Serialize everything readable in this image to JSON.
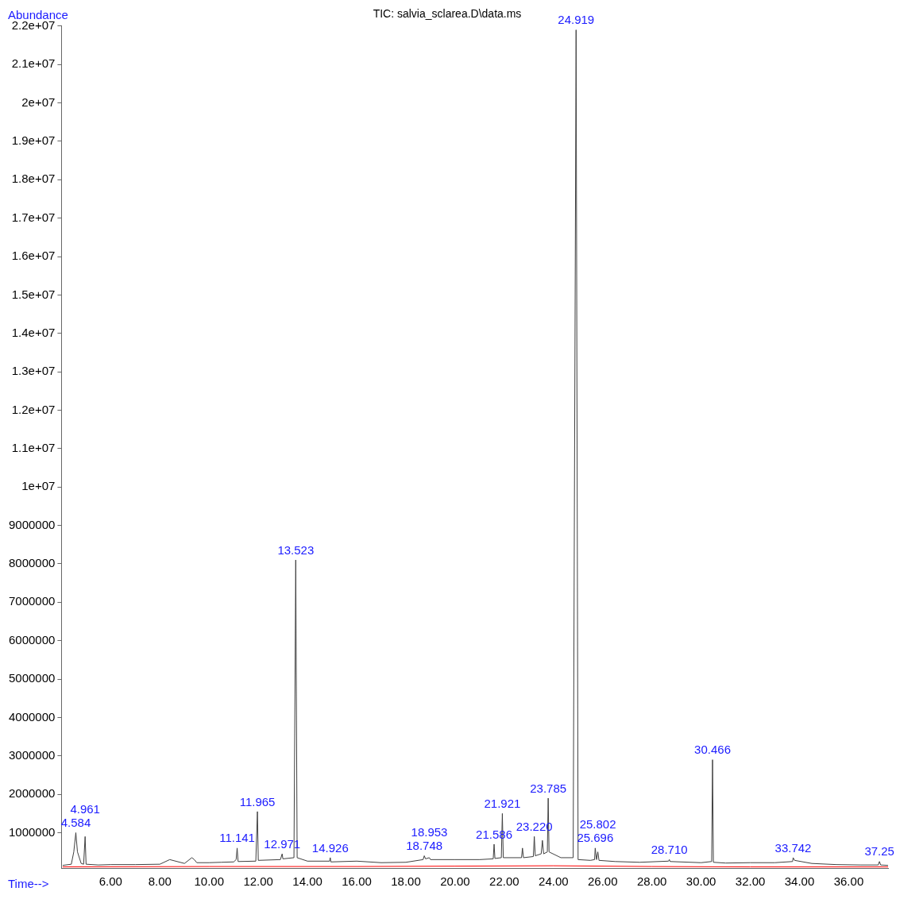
{
  "chart_data": {
    "type": "line",
    "title": "TIC: salvia_sclarea.D\\data.ms",
    "xlabel": "Time-->",
    "ylabel": "Abundance",
    "xlim": [
      4.0,
      37.6
    ],
    "xticks": [
      {
        "value": 6,
        "label": "6.00"
      },
      {
        "value": 8,
        "label": "8.00"
      },
      {
        "value": 10,
        "label": "10.00"
      },
      {
        "value": 12,
        "label": "12.00"
      },
      {
        "value": 14,
        "label": "14.00"
      },
      {
        "value": 16,
        "label": "16.00"
      },
      {
        "value": 18,
        "label": "18.00"
      },
      {
        "value": 20,
        "label": "20.00"
      },
      {
        "value": 22,
        "label": "22.00"
      },
      {
        "value": 24,
        "label": "24.00"
      },
      {
        "value": 26,
        "label": "26.00"
      },
      {
        "value": 28,
        "label": "28.00"
      },
      {
        "value": 30,
        "label": "30.00"
      },
      {
        "value": 32,
        "label": "32.00"
      },
      {
        "value": 34,
        "label": "34.00"
      },
      {
        "value": 36,
        "label": "36.00"
      }
    ],
    "ylim": [
      80000,
      22000000
    ],
    "yticks": [
      1000000,
      2000000,
      3000000,
      4000000,
      5000000,
      6000000,
      7000000,
      8000000,
      9000000,
      {
        "value": 10000000,
        "label": "1e+07"
      },
      {
        "value": 11000000,
        "label": "1.1e+07"
      },
      {
        "value": 12000000,
        "label": "1.2e+07"
      },
      {
        "value": 13000000,
        "label": "1.3e+07"
      },
      {
        "value": 14000000,
        "label": "1.4e+07"
      },
      {
        "value": 15000000,
        "label": "1.5e+07"
      },
      {
        "value": 16000000,
        "label": "1.6e+07"
      },
      {
        "value": 17000000,
        "label": "1.7e+07"
      },
      {
        "value": 18000000,
        "label": "1.8e+07"
      },
      {
        "value": 19000000,
        "label": "1.9e+07"
      },
      {
        "value": 20000000,
        "label": "2e+07"
      },
      {
        "value": 21000000,
        "label": "2.1e+07"
      },
      {
        "value": 22000000,
        "label": "2.2e+07"
      }
    ],
    "grid": false,
    "legend": false,
    "marker": "none",
    "line_style": "solid",
    "series": [
      {
        "color": "#404040",
        "x": [
          4.05,
          4.4,
          4.5,
          4.584,
          4.65,
          4.8,
          4.9,
          4.961,
          5.0,
          5.5,
          6.0,
          7.0,
          8.0,
          8.4,
          9.0,
          9.3,
          9.4,
          9.5,
          10.0,
          10.5,
          11.0,
          11.1,
          11.141,
          11.18,
          11.9,
          11.965,
          12.0,
          12.9,
          12.971,
          13.0,
          13.45,
          13.523,
          13.58,
          14.0,
          14.9,
          14.926,
          14.95,
          16.0,
          17.0,
          18.0,
          18.7,
          18.748,
          18.8,
          18.953,
          19.0,
          20.0,
          21.0,
          21.55,
          21.586,
          21.62,
          21.88,
          21.921,
          21.96,
          22.7,
          22.74,
          22.78,
          23.18,
          23.22,
          23.26,
          23.5,
          23.55,
          23.6,
          23.75,
          23.785,
          23.82,
          24.3,
          24.8,
          24.919,
          25.0,
          25.5,
          25.67,
          25.696,
          25.75,
          25.802,
          25.85,
          26.5,
          27.5,
          28.68,
          28.71,
          28.74,
          30.0,
          30.43,
          30.466,
          30.5,
          31.0,
          32.0,
          33.0,
          33.72,
          33.742,
          33.8,
          34.5,
          35.5,
          36.5,
          37.2,
          37.25,
          37.3,
          37.6
        ],
        "values": [
          150000,
          180000,
          500000,
          1000000,
          500000,
          200000,
          180000,
          900000,
          180000,
          160000,
          170000,
          170000,
          180000,
          300000,
          200000,
          350000,
          300000,
          220000,
          220000,
          230000,
          240000,
          300000,
          600000,
          250000,
          260000,
          1550000,
          280000,
          300000,
          450000,
          320000,
          350000,
          8100000,
          350000,
          260000,
          260000,
          350000,
          240000,
          260000,
          220000,
          230000,
          300000,
          400000,
          320000,
          350000,
          300000,
          300000,
          300000,
          320000,
          700000,
          330000,
          350000,
          1500000,
          350000,
          350000,
          600000,
          350000,
          380000,
          900000,
          400000,
          450000,
          800000,
          450000,
          500000,
          1900000,
          500000,
          350000,
          350000,
          21900000,
          300000,
          280000,
          300000,
          600000,
          300000,
          500000,
          280000,
          250000,
          230000,
          260000,
          300000,
          250000,
          220000,
          250000,
          2900000,
          230000,
          210000,
          220000,
          220000,
          250000,
          350000,
          280000,
          200000,
          170000,
          160000,
          160000,
          250000,
          160000,
          150000
        ]
      },
      {
        "color": "#ff0000",
        "x": [
          4.05,
          10.0,
          16.0,
          20.0,
          24.0,
          28.0,
          32.0,
          37.6
        ],
        "values": [
          110000,
          120000,
          120000,
          130000,
          140000,
          120000,
          110000,
          110000
        ]
      }
    ],
    "annotations": [
      {
        "text": "4.584",
        "x": 4.584,
        "y": 1000000
      },
      {
        "text": "4.961",
        "x": 4.961,
        "y": 900000
      },
      {
        "text": "11.141",
        "x": 11.141,
        "y": 600000
      },
      {
        "text": "11.965",
        "x": 11.965,
        "y": 1550000
      },
      {
        "text": "12.971",
        "x": 12.971,
        "y": 450000
      },
      {
        "text": "13.523",
        "x": 13.523,
        "y": 8100000
      },
      {
        "text": "14.926",
        "x": 14.926,
        "y": 350000
      },
      {
        "text": "18.748",
        "x": 18.748,
        "y": 400000
      },
      {
        "text": "18.953",
        "x": 18.953,
        "y": 350000
      },
      {
        "text": "21.586",
        "x": 21.586,
        "y": 700000
      },
      {
        "text": "21.921",
        "x": 21.921,
        "y": 1500000
      },
      {
        "text": "23.220",
        "x": 23.22,
        "y": 900000
      },
      {
        "text": "23.785",
        "x": 23.785,
        "y": 1900000
      },
      {
        "text": "24.919",
        "x": 24.919,
        "y": 21900000
      },
      {
        "text": "25.696",
        "x": 25.696,
        "y": 600000
      },
      {
        "text": "25.802",
        "x": 25.802,
        "y": 500000
      },
      {
        "text": "28.710",
        "x": 28.71,
        "y": 300000
      },
      {
        "text": "30.466",
        "x": 30.466,
        "y": 2900000
      },
      {
        "text": "33.742",
        "x": 33.742,
        "y": 350000
      },
      {
        "text": "37.25",
        "x": 37.25,
        "y": 250000
      }
    ]
  }
}
